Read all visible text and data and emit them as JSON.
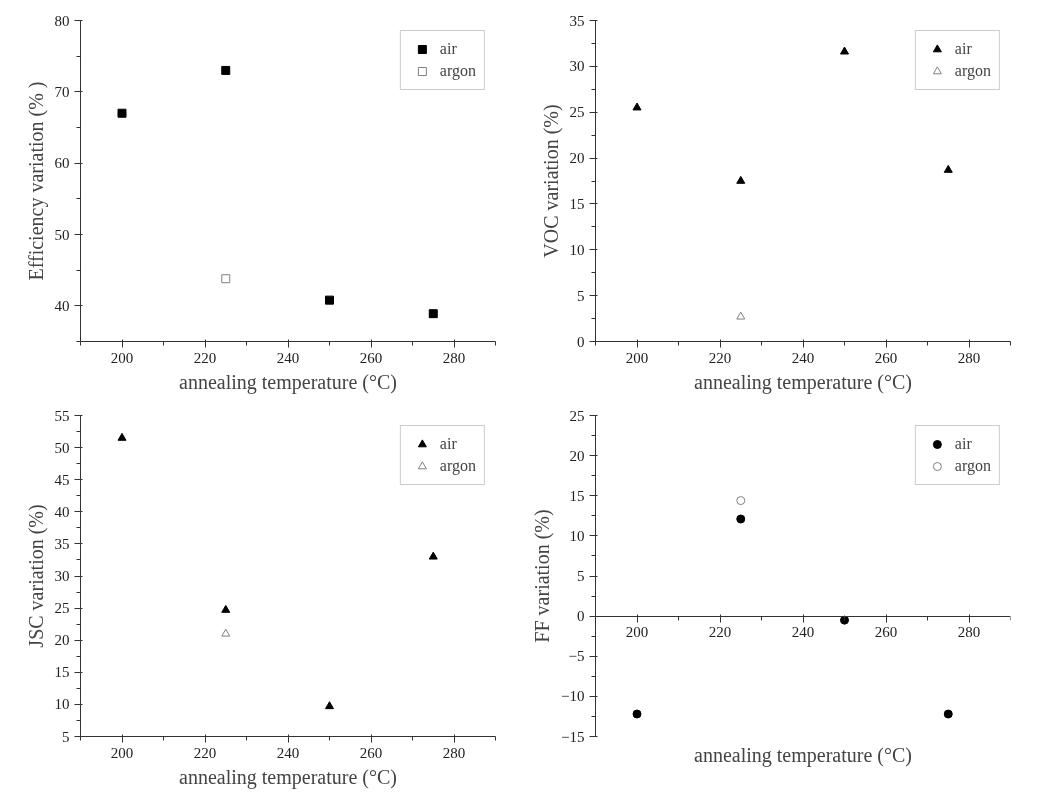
{
  "chart_data": [
    {
      "type": "scatter",
      "xlabel": "annealing temperature (°C)",
      "ylabel": "Efficiency variation (% )",
      "x": [
        200,
        225,
        250,
        275
      ],
      "xlim": [
        190,
        290
      ],
      "xticks": [
        200,
        220,
        240,
        260,
        280
      ],
      "ylim": [
        35,
        80
      ],
      "yticks": [
        40,
        50,
        60,
        70,
        80
      ],
      "marker": "square",
      "grid": false,
      "legend": "top right",
      "series": [
        {
          "name": "air",
          "color": "#000000",
          "values": [
            67,
            73,
            40.8,
            38.9
          ]
        },
        {
          "name": "argon",
          "color": "#808080",
          "values": [
            null,
            43.8,
            null,
            null
          ]
        }
      ]
    },
    {
      "type": "scatter",
      "xlabel": "annealing temperature (°C)",
      "ylabel": "VOC variation (%)",
      "x": [
        200,
        225,
        250,
        275
      ],
      "xlim": [
        190,
        290
      ],
      "xticks": [
        200,
        220,
        240,
        260,
        280
      ],
      "ylim": [
        0,
        35
      ],
      "yticks": [
        0,
        5,
        10,
        15,
        20,
        25,
        30,
        35
      ],
      "marker": "triangle",
      "grid": false,
      "legend": "top right",
      "series": [
        {
          "name": "air",
          "color": "#000000",
          "values": [
            25.5,
            17.5,
            31.6,
            18.7
          ]
        },
        {
          "name": "argon",
          "color": "#808080",
          "values": [
            null,
            2.7,
            null,
            null
          ]
        }
      ]
    },
    {
      "type": "scatter",
      "xlabel": "annealing temperature (°C)",
      "ylabel": "JSC variation (%)",
      "x": [
        200,
        225,
        250,
        275
      ],
      "xlim": [
        190,
        290
      ],
      "xticks": [
        200,
        220,
        240,
        260,
        280
      ],
      "ylim": [
        5,
        55
      ],
      "yticks": [
        5,
        10,
        15,
        20,
        25,
        30,
        35,
        40,
        45,
        50,
        55
      ],
      "marker": "triangle",
      "grid": false,
      "legend": "top right",
      "series": [
        {
          "name": "air",
          "color": "#000000",
          "values": [
            51.5,
            24.7,
            9.7,
            33
          ]
        },
        {
          "name": "argon",
          "color": "#808080",
          "values": [
            null,
            21,
            null,
            null
          ]
        }
      ]
    },
    {
      "type": "scatter",
      "xlabel": "annealing temperature (°C)",
      "ylabel": "FF variation (%)",
      "x": [
        200,
        225,
        250,
        275
      ],
      "xlim": [
        190,
        290
      ],
      "xticks": [
        200,
        220,
        240,
        260,
        280
      ],
      "ylim": [
        -15,
        25
      ],
      "yticks": [
        -15,
        -10,
        -5,
        0,
        5,
        10,
        15,
        20,
        25
      ],
      "marker": "circle",
      "grid": false,
      "legend": "top right",
      "series": [
        {
          "name": "air",
          "color": "#000000",
          "values": [
            -12.2,
            12.1,
            -0.5,
            -12.2
          ]
        },
        {
          "name": "argon",
          "color": "#808080",
          "values": [
            null,
            14.4,
            null,
            null
          ]
        }
      ]
    }
  ]
}
